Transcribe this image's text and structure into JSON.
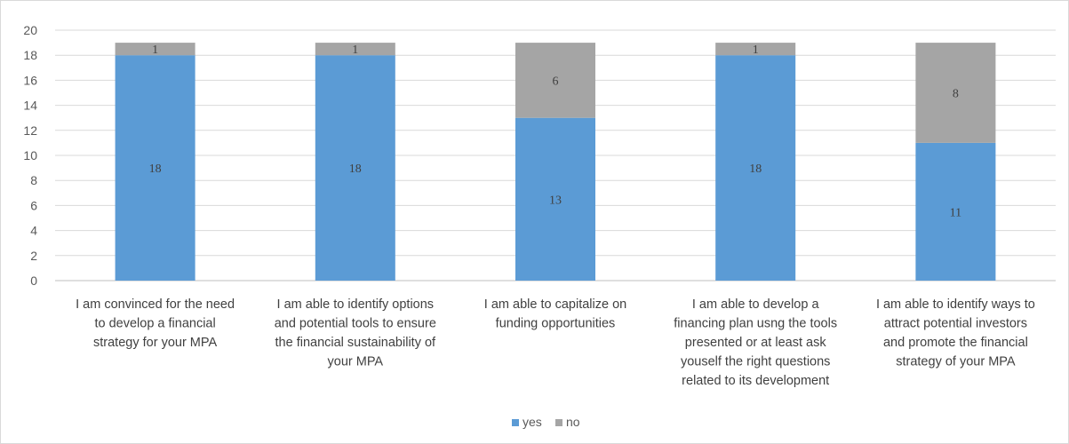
{
  "chart_data": {
    "type": "bar",
    "stacked": true,
    "categories": [
      [
        "I am convinced for the need",
        "to develop a financial",
        "strategy for your MPA"
      ],
      [
        "I am able to identify options",
        "and potential tools to ensure",
        "the financial sustainability of",
        "your MPA"
      ],
      [
        "I am able to capitalize on",
        "funding opportunities"
      ],
      [
        "I am able to develop a",
        "financing plan usng the tools",
        "presented or at least ask",
        "youself the right questions",
        "related to its development"
      ],
      [
        "I am able to identify ways to",
        "attract potential investors",
        "and promote the financial",
        "strategy of your MPA"
      ]
    ],
    "series": [
      {
        "name": "yes",
        "values": [
          18,
          18,
          13,
          18,
          11
        ],
        "color": "#5b9bd5"
      },
      {
        "name": "no",
        "values": [
          1,
          1,
          6,
          1,
          8
        ],
        "color": "#a5a5a5"
      }
    ],
    "ylim": [
      0,
      20
    ],
    "yticks": [
      0,
      2,
      4,
      6,
      8,
      10,
      12,
      14,
      16,
      18,
      20
    ],
    "grid": true,
    "legend_position": "bottom",
    "title": "",
    "xlabel": "",
    "ylabel": ""
  }
}
